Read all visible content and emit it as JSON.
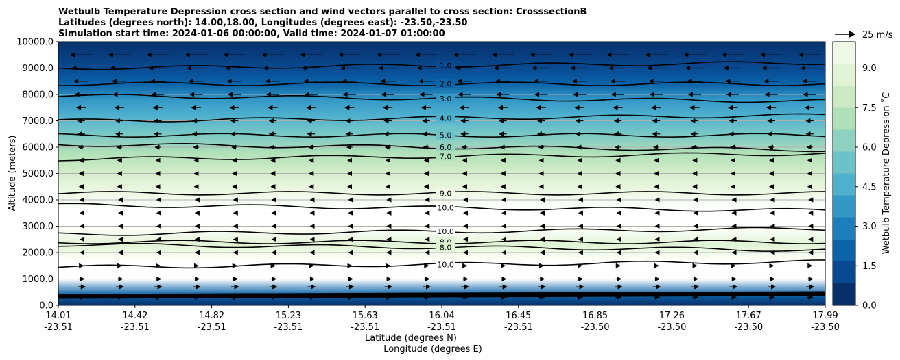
{
  "chart_data": {
    "type": "contour",
    "title_lines": [
      "Wetbulb Temperature Depression cross section and wind vectors parallel to cross section: CrosssectionB",
      "Latitudes (degrees north): 14.00,18.00, Longitudes (degrees east): -23.50,-23.50",
      "Simulation start time: 2024-01-06 00:00:00, Valid time: 2024-01-07 01:00:00"
    ],
    "xlabel_lat": "Latitude (degrees N)",
    "xlabel_lon": "Longitude (degrees E)",
    "ylabel": "Altitude (meters)",
    "colorbar_label": "Wetbulb Temperature Depression ˚C",
    "quiver_key": "25 m/s",
    "ylim": [
      0,
      10000
    ],
    "y_ticks": [
      "0.0",
      "1000.0",
      "2000.0",
      "3000.0",
      "4000.0",
      "5000.0",
      "6000.0",
      "7000.0",
      "8000.0",
      "9000.0",
      "10000.0"
    ],
    "x_ticks": [
      {
        "lat": "14.01",
        "lon": "-23.51"
      },
      {
        "lat": "14.42",
        "lon": "-23.51"
      },
      {
        "lat": "14.82",
        "lon": "-23.51"
      },
      {
        "lat": "15.23",
        "lon": "-23.51"
      },
      {
        "lat": "15.63",
        "lon": "-23.51"
      },
      {
        "lat": "16.04",
        "lon": "-23.51"
      },
      {
        "lat": "16.45",
        "lon": "-23.51"
      },
      {
        "lat": "16.85",
        "lon": "-23.50"
      },
      {
        "lat": "17.26",
        "lon": "-23.50"
      },
      {
        "lat": "17.67",
        "lon": "-23.50"
      },
      {
        "lat": "17.99",
        "lon": "-23.50"
      }
    ],
    "colorbar_range": [
      0,
      10
    ],
    "colorbar_ticks": [
      "0.0",
      "1.5",
      "3.0",
      "4.5",
      "6.0",
      "7.5",
      "9.0"
    ],
    "colormap": [
      "#08306b",
      "#084a91",
      "#0b63a8",
      "#1c7fbb",
      "#3398c6",
      "#4fb0ce",
      "#6cc2c8",
      "#8ed1c0",
      "#b0e0b8",
      "#cbeac4",
      "#e0f3d4",
      "#f0f9e8",
      "#ffffff"
    ],
    "contour_labels": [
      {
        "text": "1.0",
        "alt": 9100
      },
      {
        "text": "2.0",
        "alt": 8400
      },
      {
        "text": "3.0",
        "alt": 7850
      },
      {
        "text": "4.0",
        "alt": 7100
      },
      {
        "text": "5.0",
        "alt": 6450
      },
      {
        "text": "6.0",
        "alt": 6000
      },
      {
        "text": "7.0",
        "alt": 5650
      },
      {
        "text": "9.0",
        "alt": 4250
      },
      {
        "text": "10.0",
        "alt": 3700
      },
      {
        "text": "10.0",
        "alt": 2800
      },
      {
        "text": "8.0",
        "alt": 2400
      },
      {
        "text": "8.0",
        "alt": 2200
      },
      {
        "text": "10.0",
        "alt": 1550
      }
    ],
    "profile": [
      {
        "alt": 0,
        "v": 0.3
      },
      {
        "alt": 400,
        "v": 2.0
      },
      {
        "alt": 1000,
        "v": 10.0
      },
      {
        "alt": 1700,
        "v": 10.0
      },
      {
        "alt": 2000,
        "v": 9.2
      },
      {
        "alt": 2300,
        "v": 8.4
      },
      {
        "alt": 2600,
        "v": 9.0
      },
      {
        "alt": 3000,
        "v": 10.0
      },
      {
        "alt": 3600,
        "v": 10.0
      },
      {
        "alt": 4200,
        "v": 9.0
      },
      {
        "alt": 4700,
        "v": 8.4
      },
      {
        "alt": 5200,
        "v": 7.6
      },
      {
        "alt": 5800,
        "v": 6.5
      },
      {
        "alt": 6200,
        "v": 5.6
      },
      {
        "alt": 6700,
        "v": 4.6
      },
      {
        "alt": 7200,
        "v": 3.8
      },
      {
        "alt": 7800,
        "v": 3.0
      },
      {
        "alt": 8400,
        "v": 2.0
      },
      {
        "alt": 9000,
        "v": 1.2
      },
      {
        "alt": 10000,
        "v": 0.2
      }
    ],
    "wind_u": [
      {
        "alt": 300,
        "u": 3
      },
      {
        "alt": 700,
        "u": 4
      },
      {
        "alt": 1000,
        "u": 3
      },
      {
        "alt": 1500,
        "u": 2
      },
      {
        "alt": 2000,
        "u": -1
      },
      {
        "alt": 2500,
        "u": -1
      },
      {
        "alt": 3000,
        "u": -1
      },
      {
        "alt": 3500,
        "u": -1
      },
      {
        "alt": 4000,
        "u": -1
      },
      {
        "alt": 4500,
        "u": -2
      },
      {
        "alt": 5000,
        "u": -2
      },
      {
        "alt": 5500,
        "u": -2
      },
      {
        "alt": 6000,
        "u": -3
      },
      {
        "alt": 6500,
        "u": -4
      },
      {
        "alt": 7000,
        "u": -4
      },
      {
        "alt": 7500,
        "u": -5
      },
      {
        "alt": 8000,
        "u": -7
      },
      {
        "alt": 8500,
        "u": -8
      },
      {
        "alt": 9000,
        "u": -10
      },
      {
        "alt": 9500,
        "u": -12
      }
    ]
  }
}
